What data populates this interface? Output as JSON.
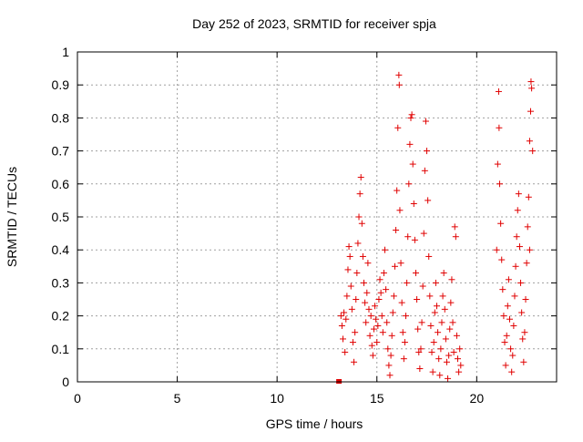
{
  "chart_data": {
    "type": "scatter",
    "title": "Day 252 of 2023, SRMTID for receiver spja",
    "xlabel": "GPS time / hours",
    "ylabel": "SRMTID / TECUs",
    "xlim": [
      0,
      24
    ],
    "ylim": [
      0,
      1
    ],
    "xticks": [
      0,
      5,
      10,
      15,
      20
    ],
    "yticks": [
      0,
      0.1,
      0.2,
      0.3,
      0.4,
      0.5,
      0.6,
      0.7,
      0.8,
      0.9,
      1
    ],
    "xtick_labels": [
      "0",
      "5",
      "10",
      "15",
      "20"
    ],
    "ytick_labels": [
      "0",
      "0.1",
      "0.2",
      "0.3",
      "0.4",
      "0.5",
      "0.6",
      "0.7",
      "0.8",
      "0.9",
      "1"
    ],
    "grid": true,
    "marker": "+",
    "color": "#e00000",
    "series": [
      {
        "name": "SRMTID",
        "square_marker": {
          "x": 13.1,
          "y": 0.0
        },
        "points": [
          [
            13.2,
            0.2
          ],
          [
            13.25,
            0.17
          ],
          [
            13.3,
            0.13
          ],
          [
            13.35,
            0.21
          ],
          [
            13.4,
            0.09
          ],
          [
            13.45,
            0.19
          ],
          [
            13.5,
            0.26
          ],
          [
            13.55,
            0.34
          ],
          [
            13.6,
            0.41
          ],
          [
            13.65,
            0.38
          ],
          [
            13.7,
            0.29
          ],
          [
            13.75,
            0.22
          ],
          [
            13.8,
            0.12
          ],
          [
            13.85,
            0.06
          ],
          [
            13.9,
            0.15
          ],
          [
            13.95,
            0.25
          ],
          [
            14.0,
            0.33
          ],
          [
            14.05,
            0.42
          ],
          [
            14.1,
            0.5
          ],
          [
            14.15,
            0.57
          ],
          [
            14.2,
            0.62
          ],
          [
            14.25,
            0.48
          ],
          [
            14.3,
            0.38
          ],
          [
            14.35,
            0.3
          ],
          [
            14.4,
            0.24
          ],
          [
            14.45,
            0.18
          ],
          [
            14.5,
            0.27
          ],
          [
            14.55,
            0.36
          ],
          [
            14.6,
            0.22
          ],
          [
            14.65,
            0.14
          ],
          [
            14.7,
            0.2
          ],
          [
            14.75,
            0.11
          ],
          [
            14.8,
            0.08
          ],
          [
            14.85,
            0.16
          ],
          [
            14.9,
            0.23
          ],
          [
            14.95,
            0.19
          ],
          [
            15.0,
            0.12
          ],
          [
            15.05,
            0.17
          ],
          [
            15.1,
            0.25
          ],
          [
            15.15,
            0.31
          ],
          [
            15.2,
            0.27
          ],
          [
            15.25,
            0.2
          ],
          [
            15.3,
            0.15
          ],
          [
            15.35,
            0.33
          ],
          [
            15.4,
            0.4
          ],
          [
            15.45,
            0.28
          ],
          [
            15.5,
            0.18
          ],
          [
            15.55,
            0.1
          ],
          [
            15.6,
            0.05
          ],
          [
            15.65,
            0.02
          ],
          [
            15.7,
            0.08
          ],
          [
            15.75,
            0.14
          ],
          [
            15.8,
            0.21
          ],
          [
            15.85,
            0.26
          ],
          [
            15.9,
            0.35
          ],
          [
            15.95,
            0.46
          ],
          [
            16.0,
            0.58
          ],
          [
            16.05,
            0.77
          ],
          [
            16.1,
            0.93
          ],
          [
            16.12,
            0.9
          ],
          [
            16.15,
            0.52
          ],
          [
            16.2,
            0.36
          ],
          [
            16.25,
            0.24
          ],
          [
            16.3,
            0.15
          ],
          [
            16.35,
            0.07
          ],
          [
            16.4,
            0.12
          ],
          [
            16.45,
            0.2
          ],
          [
            16.5,
            0.3
          ],
          [
            16.55,
            0.44
          ],
          [
            16.6,
            0.6
          ],
          [
            16.65,
            0.72
          ],
          [
            16.7,
            0.8
          ],
          [
            16.75,
            0.81
          ],
          [
            16.8,
            0.66
          ],
          [
            16.85,
            0.54
          ],
          [
            16.9,
            0.43
          ],
          [
            16.95,
            0.33
          ],
          [
            17.0,
            0.25
          ],
          [
            17.05,
            0.16
          ],
          [
            17.1,
            0.09
          ],
          [
            17.15,
            0.04
          ],
          [
            17.2,
            0.1
          ],
          [
            17.25,
            0.18
          ],
          [
            17.3,
            0.29
          ],
          [
            17.35,
            0.45
          ],
          [
            17.4,
            0.64
          ],
          [
            17.45,
            0.79
          ],
          [
            17.5,
            0.7
          ],
          [
            17.55,
            0.55
          ],
          [
            17.6,
            0.38
          ],
          [
            17.65,
            0.26
          ],
          [
            17.7,
            0.17
          ],
          [
            17.75,
            0.09
          ],
          [
            17.8,
            0.03
          ],
          [
            17.85,
            0.12
          ],
          [
            17.9,
            0.21
          ],
          [
            17.95,
            0.3
          ],
          [
            18.0,
            0.23
          ],
          [
            18.05,
            0.15
          ],
          [
            18.1,
            0.07
          ],
          [
            18.15,
            0.02
          ],
          [
            18.2,
            0.1
          ],
          [
            18.25,
            0.18
          ],
          [
            18.3,
            0.26
          ],
          [
            18.35,
            0.33
          ],
          [
            18.4,
            0.22
          ],
          [
            18.45,
            0.13
          ],
          [
            18.5,
            0.06
          ],
          [
            18.55,
            0.01
          ],
          [
            18.6,
            0.08
          ],
          [
            18.65,
            0.16
          ],
          [
            18.7,
            0.24
          ],
          [
            18.75,
            0.31
          ],
          [
            18.8,
            0.18
          ],
          [
            18.85,
            0.09
          ],
          [
            18.9,
            0.47
          ],
          [
            18.95,
            0.44
          ],
          [
            19.0,
            0.14
          ],
          [
            19.05,
            0.07
          ],
          [
            19.1,
            0.03
          ],
          [
            19.15,
            0.1
          ],
          [
            19.2,
            0.05
          ],
          [
            21.0,
            0.4
          ],
          [
            21.05,
            0.66
          ],
          [
            21.1,
            0.88
          ],
          [
            21.12,
            0.77
          ],
          [
            21.15,
            0.6
          ],
          [
            21.2,
            0.48
          ],
          [
            21.25,
            0.37
          ],
          [
            21.3,
            0.28
          ],
          [
            21.35,
            0.2
          ],
          [
            21.4,
            0.12
          ],
          [
            21.45,
            0.05
          ],
          [
            21.5,
            0.14
          ],
          [
            21.55,
            0.23
          ],
          [
            21.6,
            0.31
          ],
          [
            21.65,
            0.19
          ],
          [
            21.7,
            0.1
          ],
          [
            21.75,
            0.03
          ],
          [
            21.8,
            0.08
          ],
          [
            21.85,
            0.17
          ],
          [
            21.9,
            0.26
          ],
          [
            21.95,
            0.35
          ],
          [
            22.0,
            0.44
          ],
          [
            22.05,
            0.52
          ],
          [
            22.1,
            0.57
          ],
          [
            22.15,
            0.41
          ],
          [
            22.2,
            0.3
          ],
          [
            22.25,
            0.21
          ],
          [
            22.3,
            0.13
          ],
          [
            22.35,
            0.06
          ],
          [
            22.4,
            0.15
          ],
          [
            22.45,
            0.25
          ],
          [
            22.5,
            0.36
          ],
          [
            22.55,
            0.47
          ],
          [
            22.6,
            0.56
          ],
          [
            22.65,
            0.73
          ],
          [
            22.7,
            0.82
          ],
          [
            22.72,
            0.91
          ],
          [
            22.75,
            0.89
          ],
          [
            22.8,
            0.7
          ],
          [
            22.65,
            0.4
          ]
        ]
      }
    ]
  }
}
